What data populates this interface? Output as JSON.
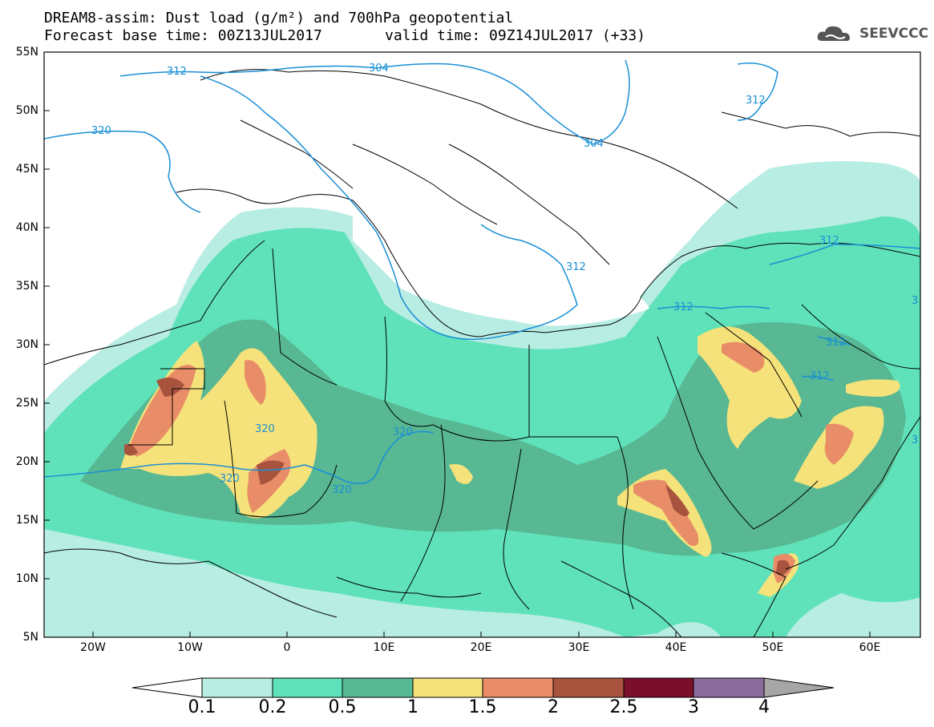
{
  "header": {
    "title_line1": "DREAM8-assim: Dust load (g/m²) and 700hPa geopotential",
    "title_line2": "Forecast base time: 00Z13JUL2017",
    "valid_time": "valid time: 09Z14JUL2017 (+33)",
    "logo_text": "SEEVCCC"
  },
  "map": {
    "lat_labels": [
      "55N",
      "50N",
      "45N",
      "40N",
      "35N",
      "30N",
      "25N",
      "20N",
      "15N",
      "10N",
      "5N"
    ],
    "lon_labels": [
      "20W",
      "10W",
      "0",
      "10E",
      "20E",
      "30E",
      "40E",
      "50E",
      "60E"
    ],
    "contour_labels": [
      "312",
      "304",
      "320",
      "312",
      "304",
      "312",
      "312",
      "312",
      "312",
      "320",
      "320",
      "320",
      "320",
      "312",
      "3",
      "3"
    ],
    "colors": {
      "land_border": "#000000",
      "contour": "#1a8fd6",
      "ocean": "#ffffff"
    }
  },
  "colorbar": {
    "labels": [
      "0.1",
      "0.2",
      "0.5",
      "1",
      "1.5",
      "2",
      "2.5",
      "3",
      "4"
    ],
    "colors": [
      "#b8ede3",
      "#5fe2b9",
      "#57b893",
      "#f6e27a",
      "#e88d67",
      "#a8533e",
      "#7b0e2a",
      "#8b6a9c",
      "#a6a6a6"
    ]
  }
}
